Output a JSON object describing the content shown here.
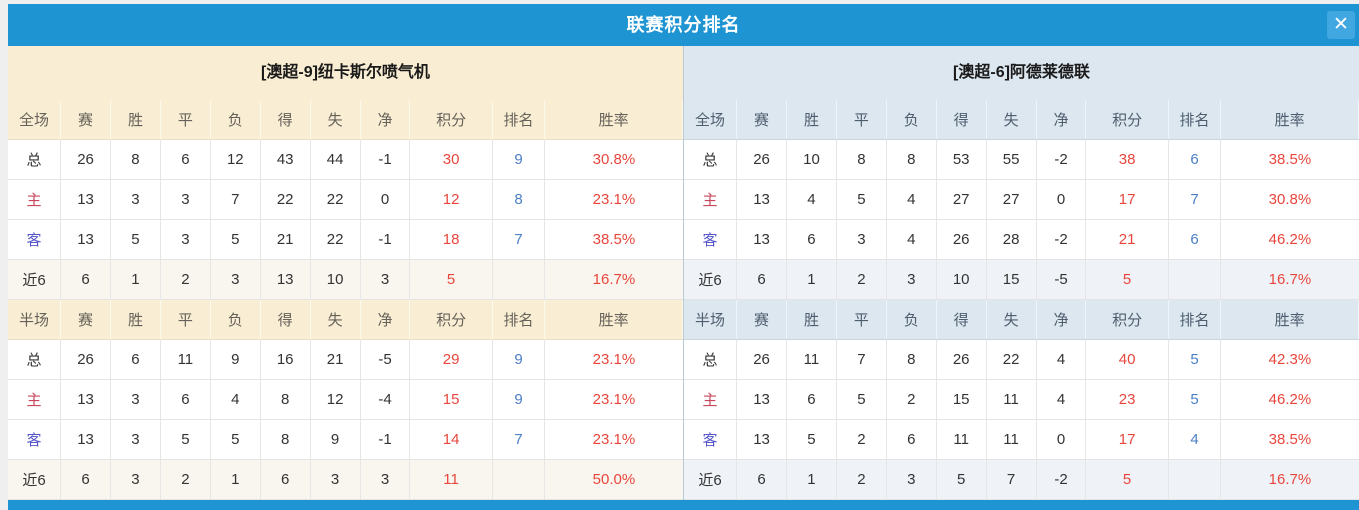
{
  "dialog": {
    "title": "联赛积分排名",
    "close_icon": "✕"
  },
  "colors": {
    "titlebar_blue": "#1e94d2",
    "close_button_blue": "#41a7e0",
    "left_theme_header_bg": "#f9eed3",
    "right_theme_header_bg": "#dde7f0",
    "points_red": "#e8463c",
    "rank_blue": "#4b7fc4",
    "home_label_red": "#c9485b",
    "away_label_blue": "#5656c8"
  },
  "columns": [
    "赛",
    "胜",
    "平",
    "负",
    "得",
    "失",
    "净",
    "积分",
    "排名",
    "胜率"
  ],
  "panels": [
    {
      "team": "[澳超-9]纽卡斯尔喷气机",
      "sections": [
        {
          "label": "全场",
          "rows": [
            {
              "label": "总",
              "type": "total",
              "cells": [
                "26",
                "8",
                "6",
                "12",
                "43",
                "44",
                "-1",
                "30",
                "9",
                "30.8%"
              ]
            },
            {
              "label": "主",
              "type": "home",
              "cells": [
                "13",
                "3",
                "3",
                "7",
                "22",
                "22",
                "0",
                "12",
                "8",
                "23.1%"
              ]
            },
            {
              "label": "客",
              "type": "away",
              "cells": [
                "13",
                "5",
                "3",
                "5",
                "21",
                "22",
                "-1",
                "18",
                "7",
                "38.5%"
              ]
            },
            {
              "label": "近6",
              "type": "recent",
              "cells": [
                "6",
                "1",
                "2",
                "3",
                "13",
                "10",
                "3",
                "5",
                "",
                "16.7%"
              ]
            }
          ]
        },
        {
          "label": "半场",
          "rows": [
            {
              "label": "总",
              "type": "total",
              "cells": [
                "26",
                "6",
                "11",
                "9",
                "16",
                "21",
                "-5",
                "29",
                "9",
                "23.1%"
              ]
            },
            {
              "label": "主",
              "type": "home",
              "cells": [
                "13",
                "3",
                "6",
                "4",
                "8",
                "12",
                "-4",
                "15",
                "9",
                "23.1%"
              ]
            },
            {
              "label": "客",
              "type": "away",
              "cells": [
                "13",
                "3",
                "5",
                "5",
                "8",
                "9",
                "-1",
                "14",
                "7",
                "23.1%"
              ]
            },
            {
              "label": "近6",
              "type": "recent",
              "cells": [
                "6",
                "3",
                "2",
                "1",
                "6",
                "3",
                "3",
                "11",
                "",
                "50.0%"
              ]
            }
          ]
        }
      ]
    },
    {
      "team": "[澳超-6]阿德莱德联",
      "sections": [
        {
          "label": "全场",
          "rows": [
            {
              "label": "总",
              "type": "total",
              "cells": [
                "26",
                "10",
                "8",
                "8",
                "53",
                "55",
                "-2",
                "38",
                "6",
                "38.5%"
              ]
            },
            {
              "label": "主",
              "type": "home",
              "cells": [
                "13",
                "4",
                "5",
                "4",
                "27",
                "27",
                "0",
                "17",
                "7",
                "30.8%"
              ]
            },
            {
              "label": "客",
              "type": "away",
              "cells": [
                "13",
                "6",
                "3",
                "4",
                "26",
                "28",
                "-2",
                "21",
                "6",
                "46.2%"
              ]
            },
            {
              "label": "近6",
              "type": "recent",
              "cells": [
                "6",
                "1",
                "2",
                "3",
                "10",
                "15",
                "-5",
                "5",
                "",
                "16.7%"
              ]
            }
          ]
        },
        {
          "label": "半场",
          "rows": [
            {
              "label": "总",
              "type": "total",
              "cells": [
                "26",
                "11",
                "7",
                "8",
                "26",
                "22",
                "4",
                "40",
                "5",
                "42.3%"
              ]
            },
            {
              "label": "主",
              "type": "home",
              "cells": [
                "13",
                "6",
                "5",
                "2",
                "15",
                "11",
                "4",
                "23",
                "5",
                "46.2%"
              ]
            },
            {
              "label": "客",
              "type": "away",
              "cells": [
                "13",
                "5",
                "2",
                "6",
                "11",
                "11",
                "0",
                "17",
                "4",
                "38.5%"
              ]
            },
            {
              "label": "近6",
              "type": "recent",
              "cells": [
                "6",
                "1",
                "2",
                "3",
                "5",
                "7",
                "-2",
                "5",
                "",
                "16.7%"
              ]
            }
          ]
        }
      ]
    }
  ]
}
